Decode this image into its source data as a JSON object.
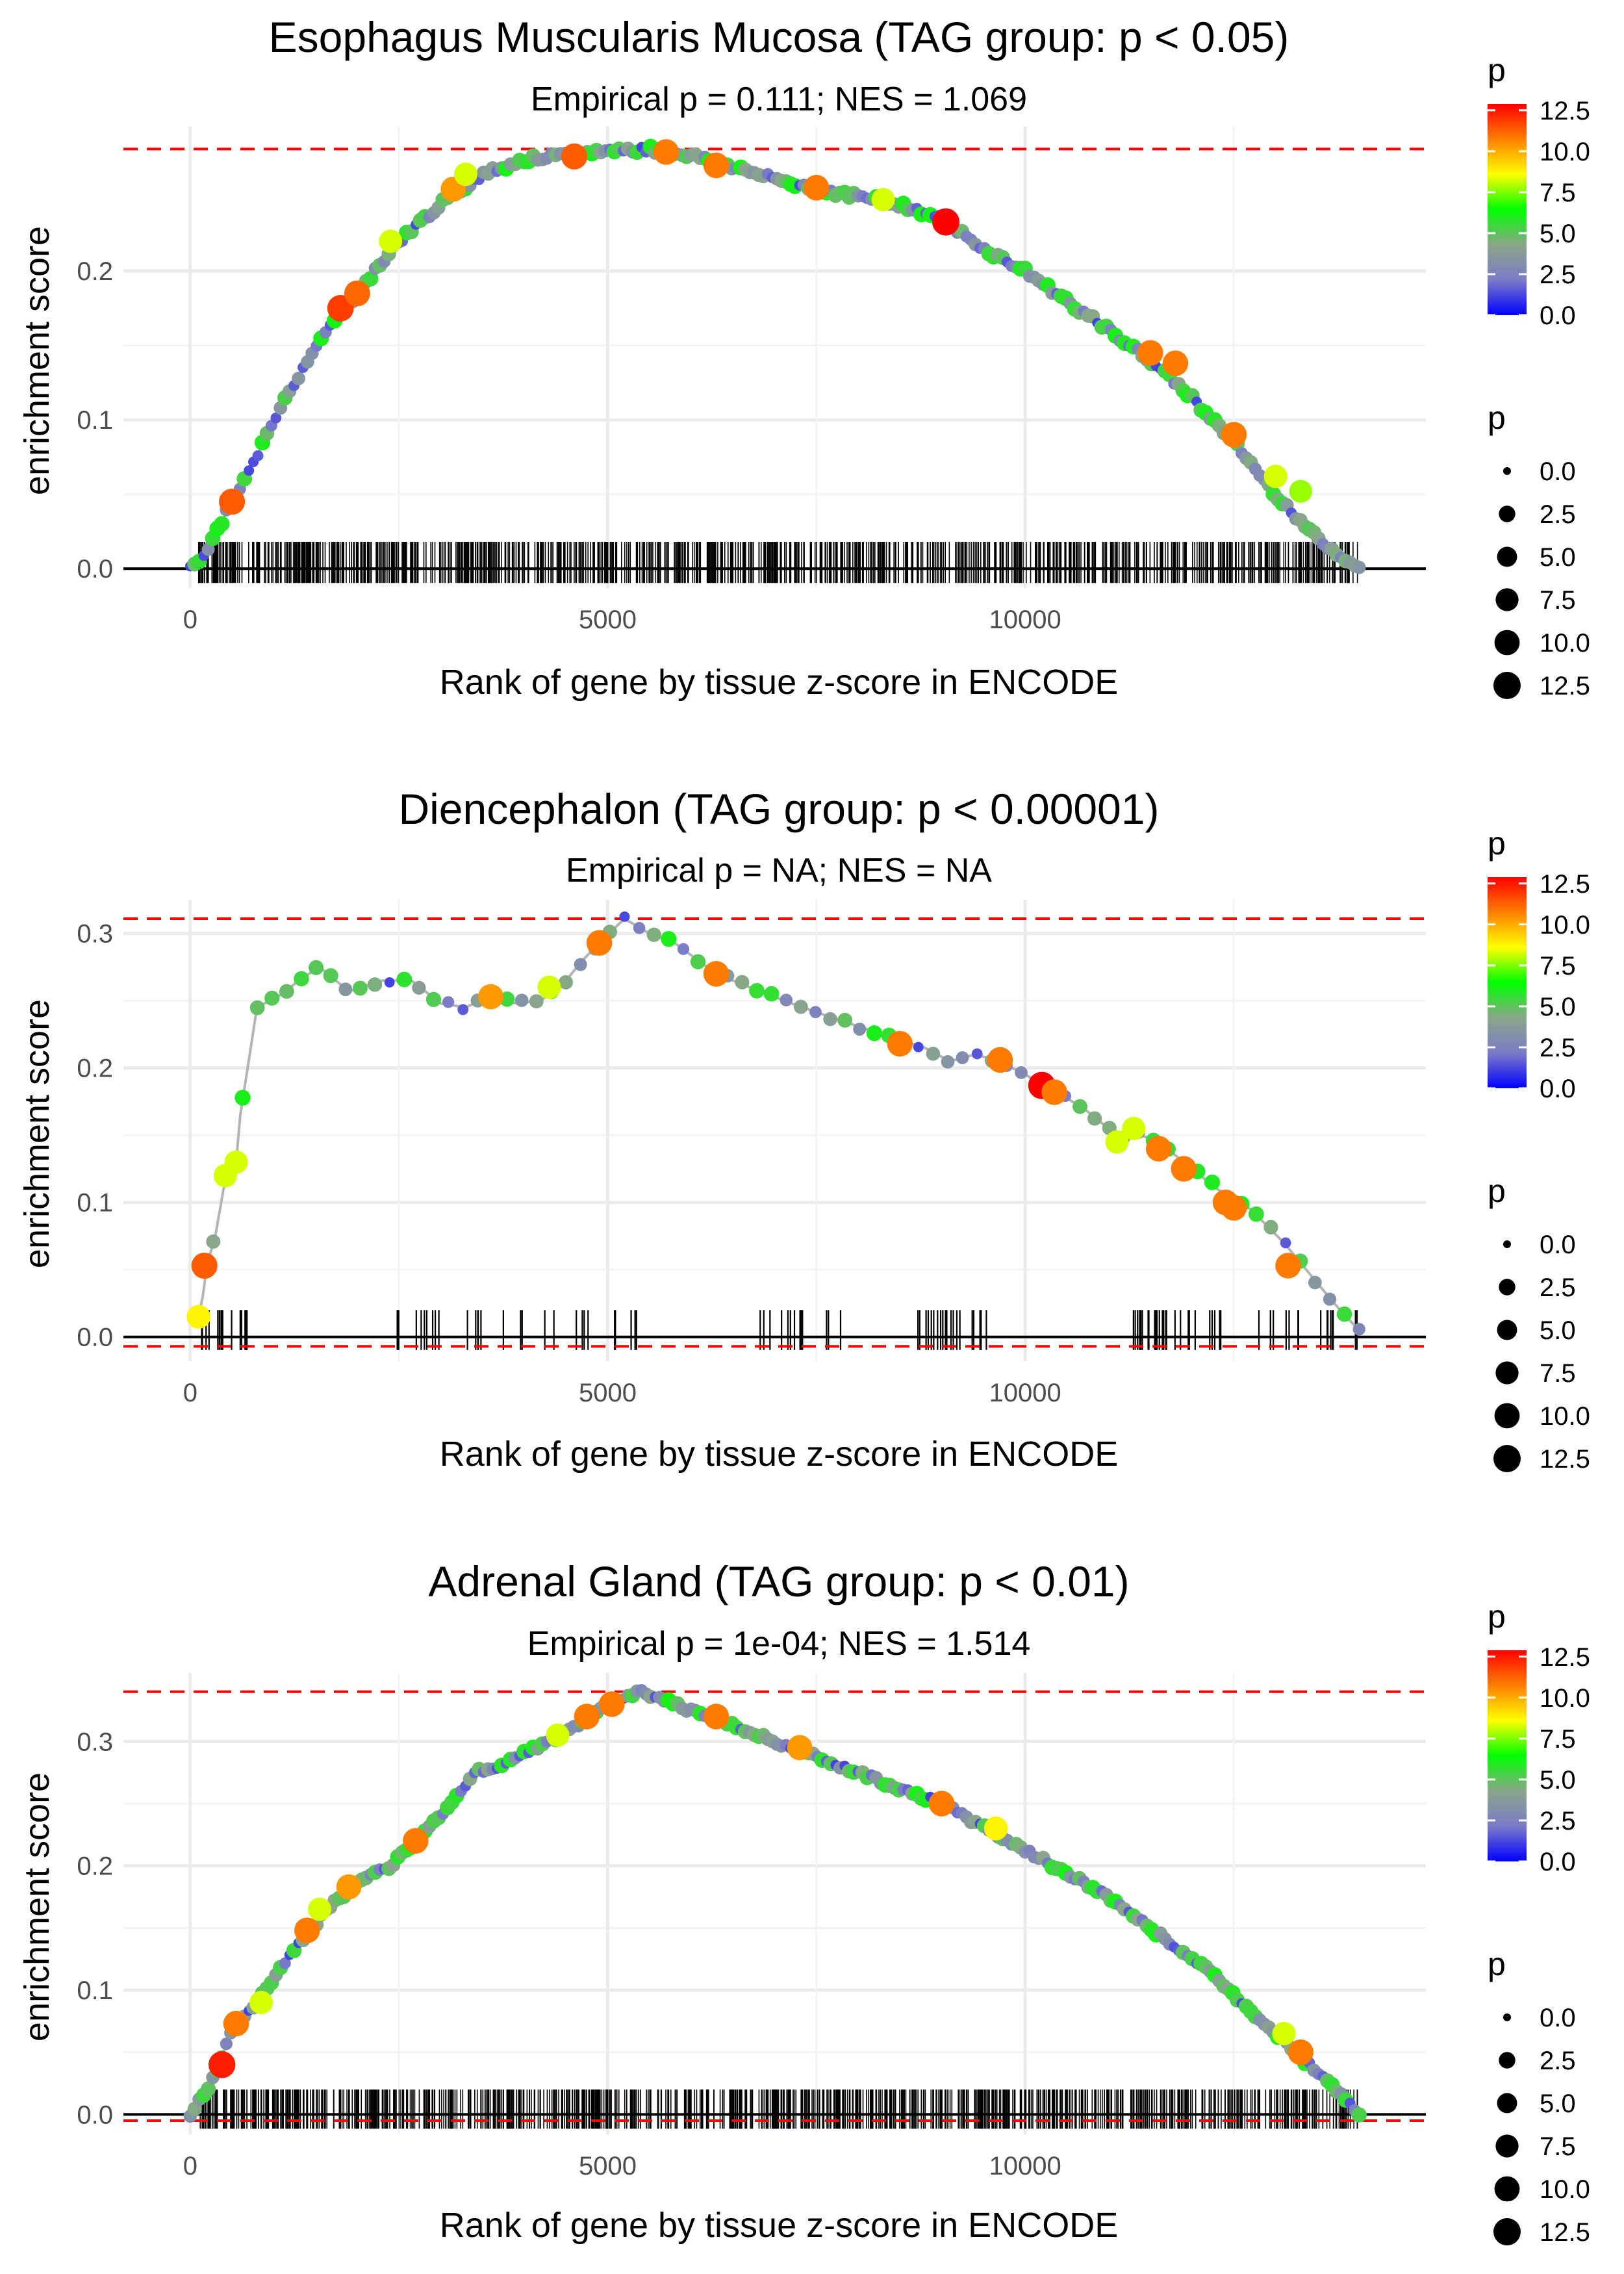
{
  "legend": {
    "color_title": "p",
    "size_title": "p",
    "ticks": [
      "0.0",
      "2.5",
      "5.0",
      "7.5",
      "10.0",
      "12.5"
    ],
    "tick_values": [
      0,
      2.5,
      5,
      7.5,
      10,
      12.5
    ],
    "gradient_colors": [
      "#0000ff",
      "#7b7bc8",
      "#8aa68a",
      "#00ff00",
      "#ffff00",
      "#ff8000",
      "#ff0000"
    ]
  },
  "chart_data": [
    {
      "type": "line",
      "title": "Esophagus Muscularis Mucosa (TAG group: p < 0.05)",
      "subtitle": "Empirical p = 0.111; NES = 1.069",
      "xlabel": "Rank of gene by tissue z-score in ENCODE",
      "ylabel": "enrichment score",
      "xlim": [
        -800,
        14800
      ],
      "ylim": [
        -0.013,
        0.297
      ],
      "x_ticks": [
        0,
        5000,
        10000
      ],
      "x_tick_labels": [
        "0",
        "5000",
        "10000"
      ],
      "y_ticks": [
        0,
        0.1,
        0.2
      ],
      "y_tick_labels": [
        "0.0",
        "0.1",
        "0.2"
      ],
      "max_es": 0.282,
      "min_es": 0,
      "x_end": 14000,
      "barcode_height": 0.018,
      "n_genes_in_set": 900,
      "curve_x": [
        0,
        200,
        500,
        800,
        1000,
        1500,
        2000,
        2500,
        3000,
        3500,
        4000,
        4500,
        5000,
        5500,
        6000,
        6500,
        7000,
        7500,
        8000,
        8500,
        9000,
        9500,
        10000,
        10500,
        11000,
        11500,
        12000,
        12500,
        13000,
        13500,
        14000
      ],
      "curve_y": [
        0,
        0.012,
        0.045,
        0.075,
        0.1,
        0.15,
        0.185,
        0.22,
        0.245,
        0.265,
        0.275,
        0.278,
        0.281,
        0.282,
        0.278,
        0.27,
        0.262,
        0.255,
        0.25,
        0.245,
        0.235,
        0.215,
        0.2,
        0.18,
        0.16,
        0.14,
        0.115,
        0.085,
        0.05,
        0.02,
        0
      ],
      "highlight_points": [
        {
          "x": 500,
          "y": 0.045,
          "p": 11
        },
        {
          "x": 1800,
          "y": 0.175,
          "p": 11.5
        },
        {
          "x": 2000,
          "y": 0.185,
          "p": 10.8
        },
        {
          "x": 2400,
          "y": 0.22,
          "p": 8
        },
        {
          "x": 3150,
          "y": 0.255,
          "p": 10
        },
        {
          "x": 3300,
          "y": 0.265,
          "p": 8
        },
        {
          "x": 4600,
          "y": 0.277,
          "p": 11
        },
        {
          "x": 5700,
          "y": 0.28,
          "p": 10.5
        },
        {
          "x": 6300,
          "y": 0.271,
          "p": 10.5
        },
        {
          "x": 7500,
          "y": 0.256,
          "p": 10.5
        },
        {
          "x": 8300,
          "y": 0.248,
          "p": 8
        },
        {
          "x": 9050,
          "y": 0.233,
          "p": 12.5
        },
        {
          "x": 11500,
          "y": 0.145,
          "p": 10.5
        },
        {
          "x": 11800,
          "y": 0.138,
          "p": 10.5
        },
        {
          "x": 12500,
          "y": 0.09,
          "p": 10.5
        },
        {
          "x": 13000,
          "y": 0.062,
          "p": 8
        },
        {
          "x": 13300,
          "y": 0.052,
          "p": 7.5
        }
      ]
    },
    {
      "type": "line",
      "title": "Diencephalon (TAG group: p < 0.00001)",
      "subtitle": "Empirical p = NA; NES = NA",
      "xlabel": "Rank of gene by tissue z-score in ENCODE",
      "ylabel": "enrichment score",
      "xlim": [
        -800,
        14800
      ],
      "ylim": [
        -0.018,
        0.325
      ],
      "x_ticks": [
        0,
        5000,
        10000
      ],
      "x_tick_labels": [
        "0",
        "5000",
        "10000"
      ],
      "y_ticks": [
        0,
        0.1,
        0.2,
        0.3
      ],
      "y_tick_labels": [
        "0.0",
        "0.1",
        "0.2",
        "0.3"
      ],
      "max_es": 0.311,
      "min_es": -0.007,
      "x_end": 14000,
      "barcode_height": 0.02,
      "n_genes_in_set": 150,
      "curve_x": [
        100,
        150,
        200,
        300,
        400,
        450,
        550,
        600,
        700,
        800,
        1100,
        1300,
        1550,
        1900,
        2300,
        2650,
        3000,
        3300,
        3600,
        3900,
        4200,
        4500,
        4700,
        4900,
        5200,
        5500,
        5800,
        6300,
        6700,
        7200,
        7800,
        8300,
        8800,
        9100,
        9400,
        9700,
        10000,
        10300,
        10700,
        11100,
        11400,
        11700,
        12000,
        12300,
        12700,
        13100,
        13500,
        13800,
        14000
      ],
      "curve_y": [
        0.015,
        0.03,
        0.053,
        0.075,
        0.11,
        0.12,
        0.13,
        0.165,
        0.205,
        0.245,
        0.255,
        0.265,
        0.275,
        0.257,
        0.265,
        0.265,
        0.248,
        0.245,
        0.254,
        0.248,
        0.25,
        0.265,
        0.28,
        0.293,
        0.311,
        0.3,
        0.293,
        0.27,
        0.26,
        0.248,
        0.235,
        0.225,
        0.215,
        0.205,
        0.21,
        0.205,
        0.195,
        0.185,
        0.17,
        0.15,
        0.15,
        0.14,
        0.125,
        0.11,
        0.095,
        0.07,
        0.04,
        0.018,
        0.005
      ],
      "highlight_points": [
        {
          "x": 100,
          "y": 0.015,
          "p": 8.5
        },
        {
          "x": 170,
          "y": 0.053,
          "p": 11
        },
        {
          "x": 420,
          "y": 0.12,
          "p": 8
        },
        {
          "x": 550,
          "y": 0.13,
          "p": 8
        },
        {
          "x": 3600,
          "y": 0.253,
          "p": 10
        },
        {
          "x": 4300,
          "y": 0.26,
          "p": 8
        },
        {
          "x": 4900,
          "y": 0.293,
          "p": 10.5
        },
        {
          "x": 6300,
          "y": 0.27,
          "p": 10.5
        },
        {
          "x": 8500,
          "y": 0.218,
          "p": 10.5
        },
        {
          "x": 9700,
          "y": 0.206,
          "p": 10.5
        },
        {
          "x": 10200,
          "y": 0.187,
          "p": 12.5
        },
        {
          "x": 10350,
          "y": 0.182,
          "p": 10.5
        },
        {
          "x": 11100,
          "y": 0.145,
          "p": 8
        },
        {
          "x": 11300,
          "y": 0.155,
          "p": 8
        },
        {
          "x": 11600,
          "y": 0.14,
          "p": 10.5
        },
        {
          "x": 11900,
          "y": 0.125,
          "p": 10.5
        },
        {
          "x": 12400,
          "y": 0.1,
          "p": 10.5
        },
        {
          "x": 12500,
          "y": 0.096,
          "p": 10.5
        },
        {
          "x": 13150,
          "y": 0.053,
          "p": 10.5
        }
      ]
    },
    {
      "type": "line",
      "title": "Adrenal Gland (TAG group: p < 0.01)",
      "subtitle": "Empirical p = 1e-04; NES = 1.514",
      "xlabel": "Rank of gene by tissue z-score in ENCODE",
      "ylabel": "enrichment score",
      "xlim": [
        -800,
        14800
      ],
      "ylim": [
        -0.016,
        0.355
      ],
      "x_ticks": [
        0,
        5000,
        10000
      ],
      "x_tick_labels": [
        "0",
        "5000",
        "10000"
      ],
      "y_ticks": [
        0,
        0.1,
        0.2,
        0.3
      ],
      "y_tick_labels": [
        "0.0",
        "0.1",
        "0.2",
        "0.3"
      ],
      "max_es": 0.34,
      "min_es": -0.005,
      "x_end": 14000,
      "barcode_height": 0.02,
      "n_genes_in_set": 900,
      "curve_x": [
        0,
        200,
        350,
        500,
        800,
        1000,
        1400,
        1700,
        2000,
        2400,
        2700,
        3000,
        3400,
        3700,
        4000,
        4300,
        4700,
        5000,
        5400,
        5800,
        6200,
        6600,
        7000,
        7400,
        7800,
        8200,
        8600,
        9000,
        9400,
        9800,
        10200,
        10600,
        11000,
        11400,
        11800,
        12200,
        12600,
        13000,
        13400,
        13800,
        14000
      ],
      "curve_y": [
        0,
        0.02,
        0.04,
        0.07,
        0.09,
        0.11,
        0.145,
        0.17,
        0.185,
        0.2,
        0.22,
        0.24,
        0.275,
        0.28,
        0.29,
        0.3,
        0.315,
        0.33,
        0.34,
        0.33,
        0.32,
        0.31,
        0.3,
        0.29,
        0.28,
        0.27,
        0.26,
        0.25,
        0.235,
        0.22,
        0.205,
        0.19,
        0.175,
        0.155,
        0.135,
        0.115,
        0.09,
        0.065,
        0.04,
        0.015,
        0
      ],
      "highlight_points": [
        {
          "x": 380,
          "y": 0.04,
          "p": 12
        },
        {
          "x": 550,
          "y": 0.073,
          "p": 10.5
        },
        {
          "x": 850,
          "y": 0.09,
          "p": 8
        },
        {
          "x": 1400,
          "y": 0.148,
          "p": 10.5
        },
        {
          "x": 1550,
          "y": 0.165,
          "p": 8
        },
        {
          "x": 1900,
          "y": 0.183,
          "p": 10
        },
        {
          "x": 2700,
          "y": 0.22,
          "p": 10.5
        },
        {
          "x": 4400,
          "y": 0.305,
          "p": 8
        },
        {
          "x": 4750,
          "y": 0.32,
          "p": 10.5
        },
        {
          "x": 5050,
          "y": 0.33,
          "p": 10.5
        },
        {
          "x": 6300,
          "y": 0.32,
          "p": 10.5
        },
        {
          "x": 7300,
          "y": 0.295,
          "p": 10
        },
        {
          "x": 9000,
          "y": 0.25,
          "p": 10.5
        },
        {
          "x": 9650,
          "y": 0.23,
          "p": 8.5
        },
        {
          "x": 13100,
          "y": 0.065,
          "p": 8
        },
        {
          "x": 13300,
          "y": 0.05,
          "p": 10.5
        }
      ]
    }
  ]
}
